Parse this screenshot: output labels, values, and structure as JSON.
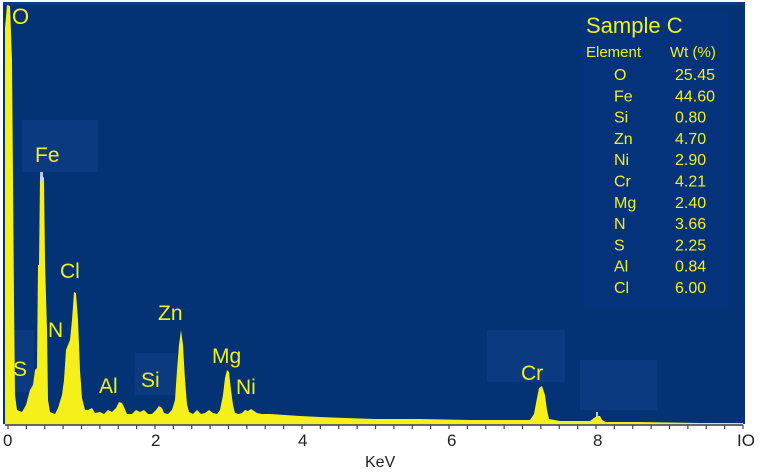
{
  "chart_data": {
    "type": "area",
    "title": "Sample C",
    "xlabel": "KeV",
    "ylabel": "",
    "xlim": [
      0,
      10
    ],
    "x_ticks": [
      "0",
      "2",
      "4",
      "6",
      "8",
      "IO"
    ],
    "grid": false,
    "background_color": "#033275",
    "spectrum_color": "#f5f01a",
    "peaks": [
      {
        "label": "O",
        "kev": 0.02,
        "rel_height": 1.0
      },
      {
        "label": "S",
        "kev": 0.33,
        "rel_height": 0.17
      },
      {
        "label": "Fe",
        "kev": 0.44,
        "rel_height": 0.6
      },
      {
        "label": "N",
        "kev": 0.82,
        "rel_height": 0.17
      },
      {
        "label": "Cl",
        "kev": 0.9,
        "rel_height": 0.31
      },
      {
        "label": "Al",
        "kev": 1.53,
        "rel_height": 0.04
      },
      {
        "label": "Si",
        "kev": 2.05,
        "rel_height": 0.03
      },
      {
        "label": "Zn",
        "kev": 2.34,
        "rel_height": 0.22
      },
      {
        "label": "Mg",
        "kev": 2.98,
        "rel_height": 0.12
      },
      {
        "label": "Ni",
        "kev": 3.22,
        "rel_height": 0.02
      },
      {
        "label": "Cr",
        "kev": 7.25,
        "rel_height": 0.09
      },
      {
        "label": "",
        "kev": 8.0,
        "rel_height": 0.015
      }
    ],
    "table": {
      "title": "Sample C",
      "columns": [
        "Element",
        "Wt (%)"
      ],
      "rows": [
        [
          "O",
          "25.45"
        ],
        [
          "Fe",
          "44.60"
        ],
        [
          "Si",
          "0.80"
        ],
        [
          "Zn",
          "4.70"
        ],
        [
          "Ni",
          "2.90"
        ],
        [
          "Cr",
          "4.21"
        ],
        [
          "Mg",
          "2.40"
        ],
        [
          "N",
          "3.66"
        ],
        [
          "S",
          "2.25"
        ],
        [
          "Al",
          "0.84"
        ],
        [
          "Cl",
          "6.00"
        ]
      ]
    }
  },
  "peak_labels": {
    "O": "O",
    "Fe": "Fe",
    "Cl": "Cl",
    "N": "N",
    "S": "S",
    "Al": "Al",
    "Si": "Si",
    "Zn": "Zn",
    "Mg": "Mg",
    "Ni": "Ni",
    "Cr": "Cr"
  },
  "axis": {
    "xlabel": "KeV",
    "ticks": [
      "0",
      "2",
      "4",
      "6",
      "8",
      "IO"
    ]
  },
  "table": {
    "title": "Sample C",
    "col_element": "Element",
    "col_wt": "Wt (%)",
    "rows": [
      {
        "el": "O",
        "wt": "25.45"
      },
      {
        "el": "Fe",
        "wt": "44.60"
      },
      {
        "el": "Si",
        "wt": "0.80"
      },
      {
        "el": "Zn",
        "wt": "4.70"
      },
      {
        "el": "Ni",
        "wt": "2.90"
      },
      {
        "el": "Cr",
        "wt": "4.21"
      },
      {
        "el": "Mg",
        "wt": "2.40"
      },
      {
        "el": "N",
        "wt": "3.66"
      },
      {
        "el": "S",
        "wt": "2.25"
      },
      {
        "el": "Al",
        "wt": "0.84"
      },
      {
        "el": "Cl",
        "wt": "6.00"
      }
    ]
  }
}
